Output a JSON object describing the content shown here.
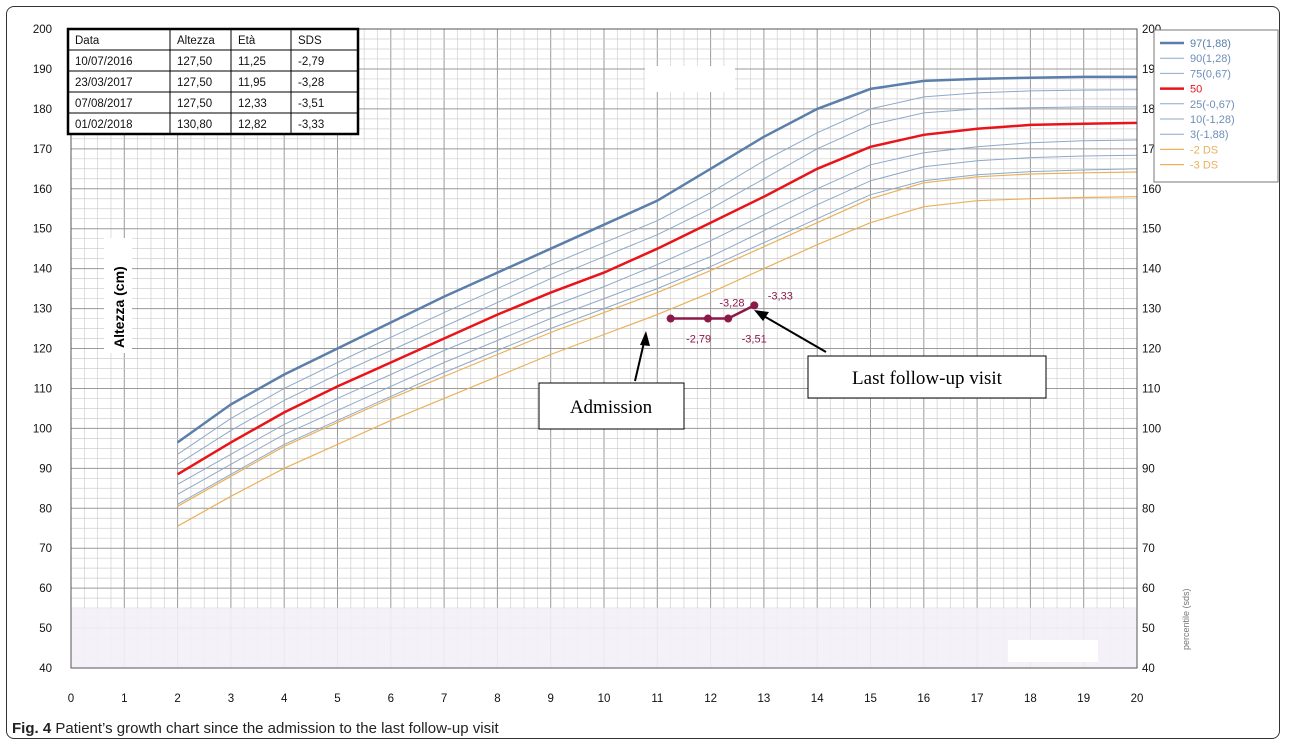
{
  "caption": {
    "label": "Fig. 4",
    "text": "Patient’s growth chart since the admission to the last follow-up visit"
  },
  "chart_data": {
    "type": "line",
    "title": "",
    "ylabel": "Altezza (cm)",
    "right_axis_label": "percentile (sds)",
    "xlabel": "",
    "xlim": [
      0,
      20
    ],
    "ylim": [
      40,
      200
    ],
    "x_ticks": [
      "0",
      "1",
      "2",
      "3",
      "4",
      "5",
      "6",
      "7",
      "8",
      "9",
      "10",
      "11",
      "12",
      "13",
      "14",
      "15",
      "16",
      "17",
      "18",
      "19",
      "20"
    ],
    "y_ticks": [
      "40",
      "50",
      "60",
      "70",
      "80",
      "90",
      "100",
      "110",
      "120",
      "130",
      "140",
      "150",
      "160",
      "170",
      "180",
      "190",
      "200"
    ],
    "grid": true,
    "legend_position": "top-right",
    "x": [
      2,
      3,
      4,
      5,
      6,
      7,
      8,
      9,
      10,
      11,
      12,
      13,
      14,
      15,
      16,
      17,
      18,
      19,
      20
    ],
    "series": [
      {
        "name": "97(1,88)",
        "color": "#5b7faa",
        "width": 2.5,
        "values": [
          96.5,
          106,
          113.5,
          120,
          126.5,
          133,
          139,
          145,
          151,
          157,
          165,
          173,
          180,
          185,
          187,
          187.5,
          187.8,
          188,
          188
        ]
      },
      {
        "name": "90(1,28)",
        "color": "#8ea9c8",
        "width": 1,
        "values": [
          93.5,
          102.5,
          110,
          116.5,
          122.8,
          129,
          135,
          141,
          146.5,
          152,
          159,
          167,
          174,
          180,
          183,
          184,
          184.5,
          184.7,
          184.8
        ]
      },
      {
        "name": "75(0,67)",
        "color": "#8ea9c8",
        "width": 1,
        "values": [
          91,
          99.5,
          107,
          113.5,
          119.5,
          125.5,
          131.5,
          137.5,
          143,
          148.5,
          155,
          162.5,
          170,
          176,
          179,
          180,
          180.3,
          180.5,
          180.5
        ]
      },
      {
        "name": "50",
        "color": "#e8141a",
        "width": 2.5,
        "values": [
          88.5,
          96.5,
          104,
          110.5,
          116.5,
          122.5,
          128.5,
          134,
          139,
          145,
          151.5,
          158,
          165,
          170.5,
          173.5,
          175,
          176,
          176.3,
          176.5
        ]
      },
      {
        "name": "25(-0,67)",
        "color": "#8ea9c8",
        "width": 1,
        "values": [
          86,
          93.5,
          101,
          107.5,
          113.5,
          119.5,
          125,
          130.5,
          135.5,
          141,
          147,
          153.5,
          160,
          166,
          169,
          170.5,
          171.5,
          172,
          172.2
        ]
      },
      {
        "name": "10(-1,28)",
        "color": "#8ea9c8",
        "width": 1,
        "values": [
          83.5,
          91,
          98.5,
          104.5,
          110.5,
          116.5,
          122,
          127.5,
          132.5,
          137.5,
          143,
          149.5,
          156,
          162,
          165.5,
          167,
          167.8,
          168.2,
          168.4
        ]
      },
      {
        "name": "3(-1,88)",
        "color": "#8ea9c8",
        "width": 1,
        "values": [
          81,
          88.5,
          96,
          102,
          108,
          114,
          119.5,
          125,
          130,
          135,
          140.5,
          146.5,
          152.5,
          158.5,
          162,
          163.5,
          164.3,
          164.7,
          165
        ]
      },
      {
        "name": "-2 DS",
        "color": "#e9b15a",
        "width": 1.2,
        "values": [
          80.5,
          88,
          95.5,
          101.5,
          107.5,
          113,
          118.5,
          124,
          129,
          134,
          139.5,
          145.5,
          151.5,
          157.5,
          161.5,
          163,
          163.7,
          164,
          164.2
        ]
      },
      {
        "name": "-3 DS",
        "color": "#e9b15a",
        "width": 1.2,
        "values": [
          75.5,
          83,
          90,
          96,
          102,
          107.5,
          113,
          118.5,
          123.5,
          128.5,
          134,
          140,
          146,
          151.5,
          155.5,
          157,
          157.5,
          157.8,
          158
        ]
      }
    ],
    "patient": {
      "color": "#8b1a4a",
      "points": [
        {
          "x": 11.25,
          "y": 127.5,
          "label": "-2,79"
        },
        {
          "x": 11.95,
          "y": 127.5,
          "label": "-3,28"
        },
        {
          "x": 12.33,
          "y": 127.5,
          "label": "-3,51"
        },
        {
          "x": 12.82,
          "y": 130.8,
          "label": "-3,33"
        }
      ]
    },
    "table": {
      "headers": [
        "Data",
        "Altezza",
        "Età",
        "SDS"
      ],
      "rows": [
        [
          "10/07/2016",
          "127,50",
          "11,25",
          "-2,79"
        ],
        [
          "23/03/2017",
          "127,50",
          "11,95",
          "-3,28"
        ],
        [
          "07/08/2017",
          "127,50",
          "12,33",
          "-3,51"
        ],
        [
          "01/02/2018",
          "130,80",
          "12,82",
          "-3,33"
        ]
      ]
    },
    "annotations": [
      "Admission",
      "Last follow-up visit"
    ]
  }
}
